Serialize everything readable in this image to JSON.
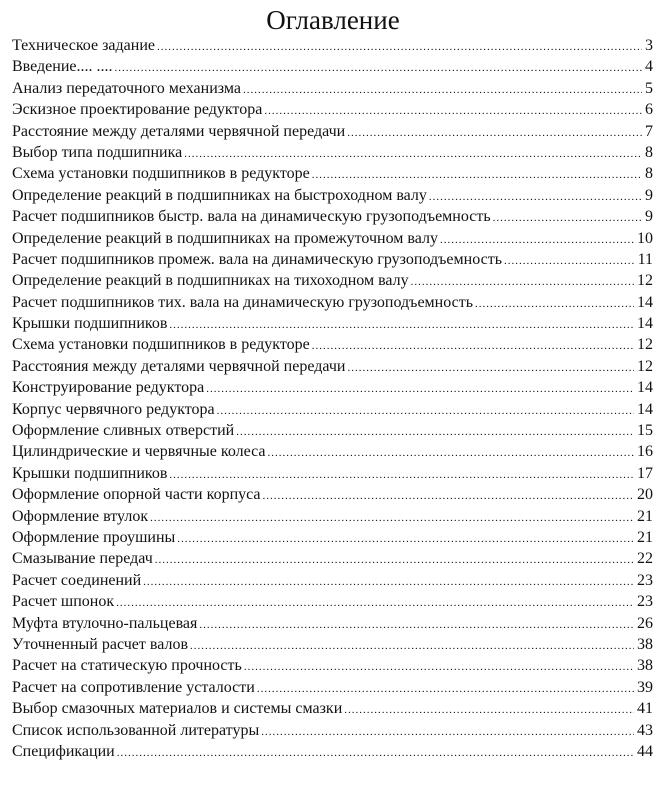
{
  "title": "Оглавление",
  "entries": [
    {
      "text": "Техническое задание",
      "page": "3"
    },
    {
      "text": "Введение....    ....",
      "page": "4"
    },
    {
      "text": "Анализ передаточного механизма",
      "page": "5"
    },
    {
      "text": "Эскизное проектирование редуктора",
      "page": "6"
    },
    {
      "text": "Расстояние между деталями червячной передачи",
      "page": "7"
    },
    {
      "text": "Выбор типа подшипника",
      "page": "8"
    },
    {
      "text": "Схема установки подшипников в редукторе",
      "page": "8"
    },
    {
      "text": "Определение реакций в подшипниках на быстроходном валу",
      "page": "9"
    },
    {
      "text": "Расчет подшипников быстр. вала на динамическую грузоподъемность",
      "page": "9"
    },
    {
      "text": "Определение реакций в подшипниках на промежуточном валу",
      "page": "10"
    },
    {
      "text": "Расчет подшипников промеж. вала на динамическую грузоподъемность",
      "page": "11"
    },
    {
      "text": "Определение реакций в подшипниках на тихоходном валу",
      "page": "12"
    },
    {
      "text": "Расчет подшипников тих. вала на динамическую грузоподъемность",
      "page": "14"
    },
    {
      "text": "Крышки подшипников",
      "page": "14"
    },
    {
      "text": "Схема установки подшипников в редукторе",
      "page": "12"
    },
    {
      "text": "Расстояния между деталями червячной передачи",
      "page": "12"
    },
    {
      "text": "Конструирование редуктора",
      "page": "14"
    },
    {
      "text": "Корпус червячного редуктора",
      "page": "14"
    },
    {
      "text": "Оформление сливных отверстий",
      "page": "15"
    },
    {
      "text": "Цилиндрические и червячные колеса",
      "page": "16"
    },
    {
      "text": "Крышки подшипников",
      "page": "17"
    },
    {
      "text": "Оформление опорной части корпуса",
      "page": "20"
    },
    {
      "text": "Оформление втулок",
      "page": "21"
    },
    {
      "text": "Оформление проушины",
      "page": "21"
    },
    {
      "text": "Смазывание передач",
      "page": "22"
    },
    {
      "text": "Расчет соединений",
      "page": "23"
    },
    {
      "text": "Расчет шпонок",
      "page": "23"
    },
    {
      "text": "Муфта втулочно-пальцевая",
      "page": "26"
    },
    {
      "text": "Уточненный расчет валов",
      "page": "38"
    },
    {
      "text": "Расчет на статическую прочность",
      "page": "38"
    },
    {
      "text": "Расчет на сопротивление усталости",
      "page": "39"
    },
    {
      "text": "Выбор смазочных материалов и системы смазки",
      "page": "41"
    },
    {
      "text": "Список использованной литературы",
      "page": "43"
    },
    {
      "text": "Спецификации",
      "page": "44"
    }
  ]
}
